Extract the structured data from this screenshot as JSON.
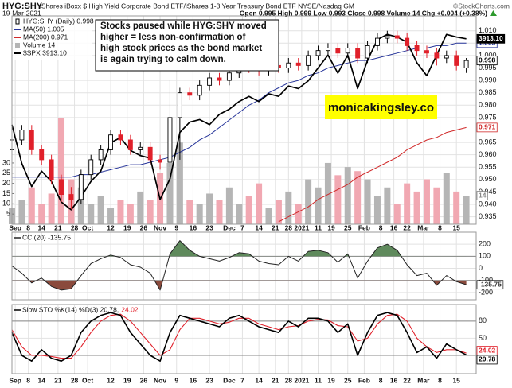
{
  "chart_data": [
    {
      "type": "candlestick",
      "title": "HYG:SHY",
      "subtitle": "iShares iBoxx $ High Yield Corporate Bond ETF/iShares 1-3 Year Treasury Bond ETF NYSE/Nasdaq GM",
      "source": "©StockCharts.com",
      "date": "19-Mar-2021",
      "quote": "Open 0.995 High 0.999 Low 0.993 Close 0.998 Volume 14 Chg +0.004 (+0.38%)",
      "x": [
        0,
        3,
        6,
        9,
        12,
        15,
        18,
        21,
        24,
        27,
        30,
        33,
        36,
        39,
        42,
        45,
        48,
        51,
        54,
        57,
        60,
        63,
        66,
        69,
        72,
        75,
        78,
        81,
        84,
        87,
        90,
        93,
        96,
        99,
        102,
        105,
        108,
        111,
        114,
        117,
        120,
        123,
        126,
        129,
        132,
        135,
        138
      ],
      "xlim": [
        0,
        141
      ],
      "xticks": [
        {
          "value": 1,
          "label": "Sep"
        },
        {
          "value": 5,
          "label": "8"
        },
        {
          "value": 9,
          "label": "14"
        },
        {
          "value": 14,
          "label": "21"
        },
        {
          "value": 19,
          "label": "28"
        },
        {
          "value": 23,
          "label": "Oct"
        },
        {
          "value": 30,
          "label": "12"
        },
        {
          "value": 35,
          "label": "19"
        },
        {
          "value": 40,
          "label": "26"
        },
        {
          "value": 45,
          "label": "Nov"
        },
        {
          "value": 50,
          "label": "9"
        },
        {
          "value": 55,
          "label": "16"
        },
        {
          "value": 60,
          "label": "23"
        },
        {
          "value": 66,
          "label": "Dec"
        },
        {
          "value": 70,
          "label": "7"
        },
        {
          "value": 75,
          "label": "14"
        },
        {
          "value": 80,
          "label": "21"
        },
        {
          "value": 84,
          "label": "28"
        },
        {
          "value": 88,
          "label": "2021"
        },
        {
          "value": 93,
          "label": "11"
        },
        {
          "value": 97,
          "label": "19"
        },
        {
          "value": 102,
          "label": "25"
        },
        {
          "value": 107,
          "label": "Feb"
        },
        {
          "value": 112,
          "label": "8"
        },
        {
          "value": 116,
          "label": "16"
        },
        {
          "value": 120,
          "label": "22"
        },
        {
          "value": 125,
          "label": "Mar"
        },
        {
          "value": 130,
          "label": "8"
        },
        {
          "value": 135,
          "label": "15"
        }
      ],
      "ylim": [
        0.932,
        1.016
      ],
      "yticks": [
        0.935,
        {
          "value": 0.94,
          "label": "0.940"
        },
        0.945,
        {
          "value": 0.95,
          "label": "0.950"
        },
        0.955,
        {
          "value": 0.96,
          "label": "0.960"
        },
        0.965,
        {
          "value": 0.97,
          "label": "0.970"
        },
        0.975,
        {
          "value": 0.98,
          "label": "0.980"
        },
        0.985,
        {
          "value": 0.99,
          "label": "0.990"
        },
        0.995,
        {
          "value": 1,
          "label": "1.000"
        },
        1.005,
        {
          "value": 1.01,
          "label": "1.010"
        }
      ],
      "y2lim": [
        3194,
        4002
      ],
      "grid": true,
      "legend": "top-left",
      "candles": {
        "name": "HYG:SHY (Daily) 0.998",
        "up_color": "#000000",
        "down_color": "#e0202a",
        "tag": "0.998",
        "open": [
          0.962,
          0.966,
          0.97,
          0.962,
          0.958,
          0.95,
          0.944,
          0.942,
          0.952,
          0.958,
          0.962,
          0.968,
          0.966,
          0.962,
          0.963,
          0.958,
          0.957,
          0.975,
          0.985,
          0.984,
          0.988,
          0.991,
          0.99,
          0.993,
          0.996,
          0.995,
          0.994,
          0.996,
          0.995,
          0.997,
          0.996,
          1.0,
          1.002,
          1.003,
          1.001,
          1.003,
          0.999,
          1.004,
          1.007,
          1.008,
          1.007,
          1.004,
          1.002,
          1.001,
          0.999,
          1.0,
          0.995
        ],
        "high": [
          0.968,
          0.972,
          0.972,
          0.964,
          0.96,
          0.952,
          0.947,
          0.954,
          0.96,
          0.964,
          0.97,
          0.97,
          0.968,
          0.965,
          0.965,
          0.96,
          0.99,
          0.987,
          0.987,
          0.99,
          0.993,
          0.993,
          0.995,
          0.998,
          0.998,
          0.997,
          0.998,
          0.998,
          0.999,
          0.999,
          1.002,
          1.004,
          1.005,
          1.005,
          1.005,
          1.005,
          1.006,
          1.009,
          1.01,
          1.01,
          1.009,
          1.006,
          1.004,
          1.003,
          1.002,
          1.002,
          0.999
        ],
        "low": [
          0.96,
          0.964,
          0.96,
          0.956,
          0.948,
          0.941,
          0.938,
          0.94,
          0.95,
          0.956,
          0.96,
          0.964,
          0.96,
          0.96,
          0.956,
          0.954,
          0.955,
          0.958,
          0.982,
          0.982,
          0.986,
          0.988,
          0.988,
          0.991,
          0.993,
          0.992,
          0.992,
          0.993,
          0.993,
          0.994,
          0.994,
          0.998,
          1.0,
          0.999,
          0.999,
          0.997,
          0.997,
          1.002,
          1.005,
          1.005,
          1.002,
          1.0,
          0.999,
          0.996,
          0.997,
          0.994,
          0.993
        ],
        "close": [
          0.966,
          0.97,
          0.962,
          0.958,
          0.95,
          0.944,
          0.942,
          0.952,
          0.958,
          0.962,
          0.968,
          0.966,
          0.962,
          0.963,
          0.958,
          0.957,
          0.975,
          0.985,
          0.984,
          0.988,
          0.991,
          0.99,
          0.993,
          0.996,
          0.995,
          0.994,
          0.996,
          0.995,
          0.997,
          0.996,
          1.0,
          1.002,
          1.003,
          1.001,
          1.003,
          0.999,
          1.004,
          1.007,
          1.008,
          1.007,
          1.004,
          1.002,
          1.001,
          0.999,
          1.0,
          0.996,
          0.998
        ]
      },
      "series": [
        {
          "name": "MA(50) 1.005",
          "color": "#27359a",
          "tag": "1.005",
          "values": [
            0.951,
            0.951,
            0.951,
            0.951,
            0.951,
            0.951,
            0.951,
            0.952,
            0.952,
            0.953,
            0.954,
            0.955,
            0.956,
            0.956,
            0.957,
            0.958,
            0.959,
            0.961,
            0.963,
            0.966,
            0.968,
            0.971,
            0.974,
            0.977,
            0.98,
            0.982,
            0.985,
            0.987,
            0.989,
            0.99,
            0.992,
            0.993,
            0.995,
            0.996,
            0.997,
            0.998,
            0.998,
            0.999,
            1.0,
            1.001,
            1.002,
            1.003,
            1.003,
            1.004,
            1.004,
            1.005,
            1.005
          ]
        },
        {
          "name": "MA(200) 0.971",
          "color": "#d02828",
          "tag": "0.971",
          "values": [
            null,
            null,
            null,
            null,
            null,
            null,
            null,
            null,
            null,
            null,
            null,
            null,
            null,
            null,
            null,
            null,
            null,
            null,
            null,
            null,
            null,
            null,
            null,
            null,
            null,
            null,
            null,
            0.933,
            0.935,
            0.937,
            0.939,
            0.942,
            0.944,
            0.946,
            0.948,
            0.951,
            0.953,
            0.955,
            0.957,
            0.959,
            0.962,
            0.964,
            0.966,
            0.967,
            0.969,
            0.97,
            0.971
          ]
        },
        {
          "name": "$SPX 3913.10",
          "color": "#000000",
          "axis": "y2",
          "tag": "3913.10",
          "values": [
            3580,
            3430,
            3340,
            3400,
            3360,
            3280,
            3250,
            3300,
            3360,
            3400,
            3510,
            3530,
            3480,
            3460,
            3450,
            3290,
            3370,
            3550,
            3590,
            3600,
            3580,
            3620,
            3640,
            3670,
            3690,
            3670,
            3700,
            3690,
            3730,
            3720,
            3750,
            3800,
            3850,
            3780,
            3850,
            3720,
            3830,
            3910,
            3930,
            3920,
            3900,
            3820,
            3770,
            3850,
            3930,
            3920,
            3913.1
          ]
        }
      ],
      "volume": {
        "name": "Volume 14",
        "color": "#b5b5b5",
        "down_color": "#f1a8b2",
        "tag": "14",
        "lim": [
          0,
          102
        ],
        "ticks": [
          5,
          10,
          15,
          20,
          25,
          30
        ],
        "values": [
          8,
          12,
          18,
          10,
          15,
          52,
          22,
          18,
          10,
          14,
          8,
          12,
          10,
          16,
          12,
          25,
          30,
          40,
          12,
          10,
          15,
          12,
          18,
          10,
          14,
          20,
          8,
          12,
          16,
          10,
          22,
          18,
          30,
          24,
          28,
          26,
          22,
          14,
          18,
          10,
          20,
          16,
          22,
          18,
          25,
          16,
          14
        ]
      },
      "annotation": {
        "lines": [
          "Stocks paused while HYG:SHY moved",
          "higher = less non-confirmation of",
          "high stock prices as the bond market",
          "is again trying to calm down."
        ]
      },
      "watermark": {
        "text": "monicakingsley.co",
        "color": "#ffff00"
      }
    },
    {
      "type": "line",
      "title": "CCI(20) -135.75",
      "x": [
        0,
        3,
        6,
        9,
        12,
        15,
        18,
        21,
        24,
        27,
        30,
        33,
        36,
        39,
        42,
        45,
        48,
        51,
        54,
        57,
        60,
        63,
        66,
        69,
        72,
        75,
        78,
        81,
        84,
        87,
        90,
        93,
        96,
        99,
        102,
        105,
        108,
        111,
        114,
        117,
        120,
        123,
        126,
        129,
        132,
        135,
        138
      ],
      "ylim": [
        -260,
        300
      ],
      "yticks": [
        200,
        100,
        0,
        -100,
        -200
      ],
      "levels": [
        100,
        -100
      ],
      "up_fill": "#5f8a5c",
      "down_fill": "#8a4a3c",
      "color": "#222222",
      "tag": "-135.75",
      "values": [
        20,
        -40,
        -120,
        -80,
        -150,
        -180,
        -170,
        -60,
        40,
        80,
        110,
        90,
        30,
        10,
        -40,
        -180,
        120,
        230,
        150,
        100,
        80,
        60,
        90,
        130,
        120,
        60,
        40,
        30,
        100,
        60,
        140,
        150,
        130,
        50,
        120,
        -80,
        60,
        170,
        200,
        150,
        30,
        -60,
        -40,
        -140,
        -60,
        -110,
        -135.75
      ]
    },
    {
      "type": "line",
      "title": "Slow STO %K(14) %D(3) 20.78,",
      "title_d": "24.02",
      "x": [
        0,
        3,
        6,
        9,
        12,
        15,
        18,
        21,
        24,
        27,
        30,
        33,
        36,
        39,
        42,
        45,
        48,
        51,
        54,
        57,
        60,
        63,
        66,
        69,
        72,
        75,
        78,
        81,
        84,
        87,
        90,
        93,
        96,
        99,
        102,
        105,
        108,
        111,
        114,
        117,
        120,
        123,
        126,
        129,
        132,
        135,
        138
      ],
      "xticks": [
        {
          "value": 1,
          "label": "Sep"
        },
        {
          "value": 5,
          "label": "8"
        },
        {
          "value": 9,
          "label": "14"
        },
        {
          "value": 14,
          "label": "21"
        },
        {
          "value": 19,
          "label": "28"
        },
        {
          "value": 23,
          "label": "Oct"
        },
        {
          "value": 30,
          "label": "12"
        },
        {
          "value": 35,
          "label": "19"
        },
        {
          "value": 40,
          "label": "26"
        },
        {
          "value": 45,
          "label": "Nov"
        },
        {
          "value": 50,
          "label": "9"
        },
        {
          "value": 55,
          "label": "16"
        },
        {
          "value": 60,
          "label": "23"
        },
        {
          "value": 66,
          "label": "Dec"
        },
        {
          "value": 70,
          "label": "7"
        },
        {
          "value": 75,
          "label": "14"
        },
        {
          "value": 80,
          "label": "21"
        },
        {
          "value": 84,
          "label": "28"
        },
        {
          "value": 88,
          "label": "2021"
        },
        {
          "value": 93,
          "label": "11"
        },
        {
          "value": 97,
          "label": "19"
        },
        {
          "value": 102,
          "label": "25"
        },
        {
          "value": 107,
          "label": "Feb"
        },
        {
          "value": 112,
          "label": "8"
        },
        {
          "value": 116,
          "label": "16"
        },
        {
          "value": 120,
          "label": "22"
        },
        {
          "value": 125,
          "label": "Mar"
        },
        {
          "value": 130,
          "label": "8"
        },
        {
          "value": 135,
          "label": "15"
        }
      ],
      "ylim": [
        -12,
        109
      ],
      "yticks": [
        80,
        50,
        20
      ],
      "levels": [
        80,
        20
      ],
      "k": {
        "color": "#000000",
        "tag": "20.78",
        "values": [
          60,
          20,
          10,
          30,
          15,
          10,
          20,
          60,
          80,
          90,
          95,
          90,
          60,
          40,
          20,
          10,
          60,
          90,
          85,
          80,
          75,
          70,
          85,
          90,
          80,
          70,
          65,
          60,
          80,
          70,
          85,
          85,
          80,
          60,
          75,
          20,
          60,
          90,
          95,
          90,
          60,
          25,
          35,
          15,
          40,
          30,
          20.78
        ]
      },
      "d": {
        "color": "#e0202a",
        "tag": "24.02",
        "values": [
          65,
          35,
          20,
          20,
          18,
          15,
          15,
          35,
          60,
          80,
          90,
          92,
          80,
          60,
          40,
          20,
          30,
          65,
          85,
          85,
          80,
          75,
          78,
          85,
          85,
          75,
          70,
          65,
          70,
          72,
          80,
          83,
          82,
          72,
          70,
          45,
          50,
          75,
          90,
          92,
          80,
          50,
          35,
          25,
          30,
          30,
          24.02
        ]
      }
    }
  ]
}
